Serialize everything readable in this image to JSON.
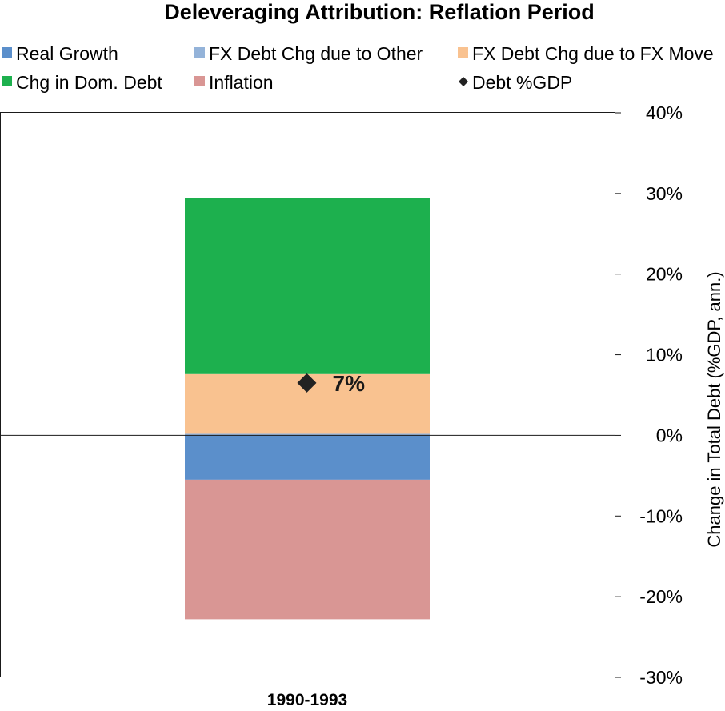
{
  "chart_data": {
    "type": "bar",
    "stacked": true,
    "title": "Deleveraging Attribution: Reflation Period",
    "ylabel": "Change in Total Debt (%GDP, ann.)",
    "xlabel": "",
    "ylim": [
      -30,
      40
    ],
    "y_ticks": [
      40,
      30,
      20,
      10,
      0,
      -10,
      -20,
      -30
    ],
    "y_tick_labels": [
      "40%",
      "30%",
      "20%",
      "10%",
      "0%",
      "-10%",
      "-20%",
      "-30%"
    ],
    "y_axis_position": "right",
    "grid": false,
    "legend_position": "top",
    "categories": [
      "1990-1993"
    ],
    "series": [
      {
        "name": "Real Growth",
        "values": [
          -5.5
        ],
        "color": "#5b8fcb"
      },
      {
        "name": "FX Debt Chg due to Other",
        "values": [
          0.2
        ],
        "color": "#94b3d9"
      },
      {
        "name": "FX Debt Chg due to FX Move",
        "values": [
          7.4
        ],
        "color": "#f9c290"
      },
      {
        "name": "Chg in Dom. Debt",
        "values": [
          21.8
        ],
        "color": "#1db04e"
      },
      {
        "name": "Inflation",
        "values": [
          -17.3
        ],
        "color": "#d99694"
      }
    ],
    "marker_series": {
      "name": "Debt %GDP",
      "values": [
        6.5
      ],
      "labels": [
        "7%"
      ],
      "color": "#222222"
    },
    "legend": [
      {
        "name": "Real Growth",
        "kind": "square",
        "color": "#5b8fcb"
      },
      {
        "name": "FX Debt Chg due to Other",
        "kind": "square",
        "color": "#94b3d9"
      },
      {
        "name": "FX Debt Chg due to FX Move",
        "kind": "square",
        "color": "#f9c290"
      },
      {
        "name": "Chg in Dom. Debt",
        "kind": "square",
        "color": "#1db04e"
      },
      {
        "name": "Inflation",
        "kind": "square",
        "color": "#d99694"
      },
      {
        "name": "Debt %GDP",
        "kind": "diamond",
        "color": "#222222"
      }
    ]
  }
}
